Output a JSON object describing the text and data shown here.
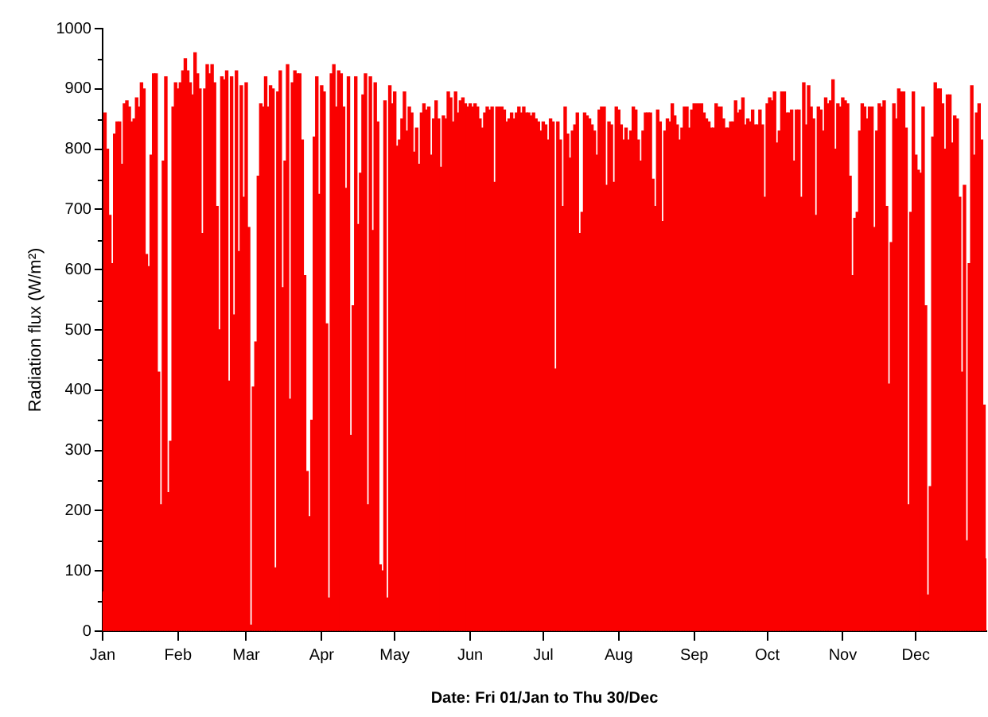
{
  "chart_data": {
    "type": "bar",
    "xlabel": "Date: Fri 01/Jan to Thu 30/Dec",
    "ylabel": "Radiation flux (W/m²)",
    "color": "#fa0000",
    "xlim": [
      "--01-01",
      "--12-30"
    ],
    "xticks": [
      {
        "value": "--01-01",
        "label": "Jan"
      },
      {
        "value": "--02-01",
        "label": "Feb"
      },
      {
        "value": "--03-01",
        "label": "Mar"
      },
      {
        "value": "--04-01",
        "label": "Apr"
      },
      {
        "value": "--05-01",
        "label": "May"
      },
      {
        "value": "--06-01",
        "label": "Jun"
      },
      {
        "value": "--07-01",
        "label": "Jul"
      },
      {
        "value": "--08-01",
        "label": "Aug"
      },
      {
        "value": "--09-01",
        "label": "Sep"
      },
      {
        "value": "--10-01",
        "label": "Oct"
      },
      {
        "value": "--11-01",
        "label": "Nov"
      },
      {
        "value": "--12-01",
        "label": "Dec"
      }
    ],
    "ylim": [
      0,
      1000
    ],
    "yticks": [
      0,
      {
        "value": 50,
        "label": null
      },
      100,
      {
        "value": 150,
        "label": null
      },
      200,
      {
        "value": 250,
        "label": null
      },
      300,
      {
        "value": 350,
        "label": null
      },
      400,
      {
        "value": 450,
        "label": null
      },
      500,
      {
        "value": 550,
        "label": null
      },
      600,
      {
        "value": 650,
        "label": null
      },
      700,
      {
        "value": 750,
        "label": null
      },
      800,
      {
        "value": 850,
        "label": null
      },
      900,
      {
        "value": 950,
        "label": null
      },
      1000
    ],
    "x": [
      "--01-01",
      "--01-02",
      "--01-03",
      "--01-04",
      "--01-05",
      "--01-06",
      "--01-07",
      "--01-08",
      "--01-09",
      "--01-10",
      "--01-11",
      "--01-12",
      "--01-13",
      "--01-14",
      "--01-15",
      "--01-16",
      "--01-17",
      "--01-18",
      "--01-19",
      "--01-20",
      "--01-21",
      "--01-22",
      "--01-23",
      "--01-24",
      "--01-25",
      "--01-26",
      "--01-27",
      "--01-28",
      "--01-29",
      "--01-30",
      "--01-31",
      "--02-01",
      "--02-02",
      "--02-03",
      "--02-04",
      "--02-05",
      "--02-06",
      "--02-07",
      "--02-08",
      "--02-09",
      "--02-10",
      "--02-11",
      "--02-12",
      "--02-13",
      "--02-14",
      "--02-15",
      "--02-16",
      "--02-17",
      "--02-18",
      "--02-19",
      "--02-20",
      "--02-21",
      "--02-22",
      "--02-23",
      "--02-24",
      "--02-25",
      "--02-26",
      "--02-27",
      "--02-28",
      "--03-01",
      "--03-02",
      "--03-03",
      "--03-04",
      "--03-05",
      "--03-06",
      "--03-07",
      "--03-08",
      "--03-09",
      "--03-10",
      "--03-11",
      "--03-12",
      "--03-13",
      "--03-14",
      "--03-15",
      "--03-16",
      "--03-17",
      "--03-18",
      "--03-19",
      "--03-20",
      "--03-21",
      "--03-22",
      "--03-23",
      "--03-24",
      "--03-25",
      "--03-26",
      "--03-27",
      "--03-28",
      "--03-29",
      "--03-30",
      "--03-31",
      "--04-01",
      "--04-02",
      "--04-03",
      "--04-04",
      "--04-05",
      "--04-06",
      "--04-07",
      "--04-08",
      "--04-09",
      "--04-10",
      "--04-11",
      "--04-12",
      "--04-13",
      "--04-14",
      "--04-15",
      "--04-16",
      "--04-17",
      "--04-18",
      "--04-19",
      "--04-20",
      "--04-21",
      "--04-22",
      "--04-23",
      "--04-24",
      "--04-25",
      "--04-26",
      "--04-27",
      "--04-28",
      "--04-29",
      "--04-30",
      "--05-01",
      "--05-02",
      "--05-03",
      "--05-04",
      "--05-05",
      "--05-06",
      "--05-07",
      "--05-08",
      "--05-09",
      "--05-10",
      "--05-11",
      "--05-12",
      "--05-13",
      "--05-14",
      "--05-15",
      "--05-16",
      "--05-17",
      "--05-18",
      "--05-19",
      "--05-20",
      "--05-21",
      "--05-22",
      "--05-23",
      "--05-24",
      "--05-25",
      "--05-26",
      "--05-27",
      "--05-28",
      "--05-29",
      "--05-30",
      "--05-31",
      "--06-01",
      "--06-02",
      "--06-03",
      "--06-04",
      "--06-05",
      "--06-06",
      "--06-07",
      "--06-08",
      "--06-09",
      "--06-10",
      "--06-11",
      "--06-12",
      "--06-13",
      "--06-14",
      "--06-15",
      "--06-16",
      "--06-17",
      "--06-18",
      "--06-19",
      "--06-20",
      "--06-21",
      "--06-22",
      "--06-23",
      "--06-24",
      "--06-25",
      "--06-26",
      "--06-27",
      "--06-28",
      "--06-29",
      "--06-30",
      "--07-01",
      "--07-02",
      "--07-03",
      "--07-04",
      "--07-05",
      "--07-06",
      "--07-07",
      "--07-08",
      "--07-09",
      "--07-10",
      "--07-11",
      "--07-12",
      "--07-13",
      "--07-14",
      "--07-15",
      "--07-16",
      "--07-17",
      "--07-18",
      "--07-19",
      "--07-20",
      "--07-21",
      "--07-22",
      "--07-23",
      "--07-24",
      "--07-25",
      "--07-26",
      "--07-27",
      "--07-28",
      "--07-29",
      "--07-30",
      "--07-31",
      "--08-01",
      "--08-02",
      "--08-03",
      "--08-04",
      "--08-05",
      "--08-06",
      "--08-07",
      "--08-08",
      "--08-09",
      "--08-10",
      "--08-11",
      "--08-12",
      "--08-13",
      "--08-14",
      "--08-15",
      "--08-16",
      "--08-17",
      "--08-18",
      "--08-19",
      "--08-20",
      "--08-21",
      "--08-22",
      "--08-23",
      "--08-24",
      "--08-25",
      "--08-26",
      "--08-27",
      "--08-28",
      "--08-29",
      "--08-30",
      "--08-31",
      "--09-01",
      "--09-02",
      "--09-03",
      "--09-04",
      "--09-05",
      "--09-06",
      "--09-07",
      "--09-08",
      "--09-09",
      "--09-10",
      "--09-11",
      "--09-12",
      "--09-13",
      "--09-14",
      "--09-15",
      "--09-16",
      "--09-17",
      "--09-18",
      "--09-19",
      "--09-20",
      "--09-21",
      "--09-22",
      "--09-23",
      "--09-24",
      "--09-25",
      "--09-26",
      "--09-27",
      "--09-28",
      "--09-29",
      "--09-30",
      "--10-01",
      "--10-02",
      "--10-03",
      "--10-04",
      "--10-05",
      "--10-06",
      "--10-07",
      "--10-08",
      "--10-09",
      "--10-10",
      "--10-11",
      "--10-12",
      "--10-13",
      "--10-14",
      "--10-15",
      "--10-16",
      "--10-17",
      "--10-18",
      "--10-19",
      "--10-20",
      "--10-21",
      "--10-22",
      "--10-23",
      "--10-24",
      "--10-25",
      "--10-26",
      "--10-27",
      "--10-28",
      "--10-29",
      "--10-30",
      "--10-31",
      "--11-01",
      "--11-02",
      "--11-03",
      "--11-04",
      "--11-05",
      "--11-06",
      "--11-07",
      "--11-08",
      "--11-09",
      "--11-10",
      "--11-11",
      "--11-12",
      "--11-13",
      "--11-14",
      "--11-15",
      "--11-16",
      "--11-17",
      "--11-18",
      "--11-19",
      "--11-20",
      "--11-21",
      "--11-22",
      "--11-23",
      "--11-24",
      "--11-25",
      "--11-26",
      "--11-27",
      "--11-28",
      "--11-29",
      "--11-30",
      "--12-01",
      "--12-02",
      "--12-03",
      "--12-04",
      "--12-05",
      "--12-06",
      "--12-07",
      "--12-08",
      "--12-09",
      "--12-10",
      "--12-11",
      "--12-12",
      "--12-13",
      "--12-14",
      "--12-15",
      "--12-16",
      "--12-17",
      "--12-18",
      "--12-19",
      "--12-20",
      "--12-21",
      "--12-22",
      "--12-23",
      "--12-24",
      "--12-25",
      "--12-26",
      "--12-27",
      "--12-28",
      "--12-29",
      "--12-30"
    ],
    "values": [
      65,
      860,
      800,
      690,
      610,
      825,
      845,
      845,
      775,
      875,
      880,
      870,
      845,
      850,
      885,
      870,
      910,
      900,
      625,
      605,
      790,
      925,
      925,
      430,
      210,
      780,
      920,
      230,
      315,
      870,
      910,
      900,
      910,
      930,
      950,
      930,
      910,
      890,
      960,
      925,
      900,
      660,
      900,
      940,
      925,
      940,
      910,
      705,
      500,
      920,
      915,
      930,
      415,
      920,
      525,
      930,
      630,
      905,
      720,
      910,
      670,
      10,
      405,
      480,
      755,
      875,
      870,
      920,
      870,
      905,
      900,
      105,
      895,
      930,
      570,
      780,
      940,
      385,
      910,
      930,
      925,
      925,
      815,
      590,
      265,
      190,
      350,
      820,
      920,
      725,
      905,
      895,
      510,
      55,
      925,
      940,
      870,
      930,
      925,
      870,
      735,
      920,
      325,
      540,
      920,
      675,
      760,
      890,
      925,
      210,
      920,
      665,
      910,
      845,
      110,
      100,
      880,
      55,
      905,
      875,
      895,
      805,
      815,
      850,
      895,
      830,
      870,
      860,
      795,
      835,
      775,
      860,
      875,
      865,
      870,
      790,
      850,
      880,
      850,
      770,
      855,
      850,
      895,
      885,
      845,
      895,
      860,
      880,
      885,
      875,
      870,
      875,
      870,
      875,
      870,
      850,
      835,
      860,
      870,
      865,
      870,
      745,
      870,
      870,
      870,
      865,
      845,
      850,
      860,
      850,
      860,
      870,
      860,
      870,
      860,
      860,
      855,
      860,
      850,
      845,
      830,
      845,
      840,
      815,
      850,
      845,
      435,
      845,
      815,
      705,
      870,
      825,
      785,
      830,
      840,
      860,
      660,
      695,
      860,
      855,
      850,
      840,
      830,
      790,
      865,
      870,
      870,
      740,
      845,
      840,
      745,
      870,
      865,
      840,
      815,
      835,
      815,
      830,
      870,
      865,
      815,
      780,
      830,
      860,
      860,
      860,
      750,
      705,
      865,
      845,
      680,
      830,
      850,
      845,
      875,
      855,
      840,
      815,
      835,
      870,
      870,
      835,
      865,
      875,
      875,
      875,
      875,
      860,
      850,
      845,
      835,
      835,
      875,
      870,
      870,
      850,
      835,
      835,
      845,
      845,
      880,
      860,
      865,
      885,
      840,
      850,
      845,
      865,
      840,
      840,
      865,
      840,
      720,
      875,
      885,
      880,
      895,
      810,
      830,
      895,
      895,
      860,
      860,
      865,
      780,
      865,
      865,
      720,
      910,
      840,
      905,
      870,
      850,
      690,
      870,
      865,
      830,
      885,
      875,
      880,
      915,
      800,
      875,
      870,
      885,
      880,
      875,
      755,
      590,
      685,
      695,
      830,
      875,
      870,
      850,
      870,
      870,
      670,
      830,
      875,
      870,
      880,
      705,
      410,
      645,
      875,
      850,
      900,
      895,
      895,
      835,
      210,
      695,
      895,
      790,
      765,
      760,
      870,
      540,
      60,
      240,
      820,
      910,
      900,
      900,
      875,
      800,
      890,
      890,
      810,
      855,
      850,
      720,
      430,
      740,
      150,
      610,
      905,
      790,
      860,
      875,
      815,
      375,
      120
    ]
  }
}
